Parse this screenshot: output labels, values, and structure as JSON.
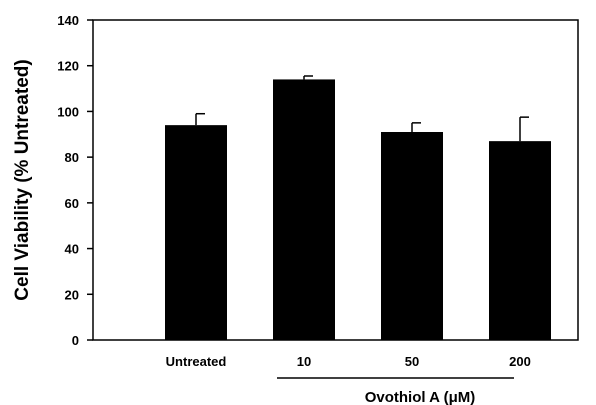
{
  "chart_data": {
    "type": "bar",
    "categories": [
      "Untreated",
      "10",
      "50",
      "200"
    ],
    "values": [
      94,
      114,
      91,
      87
    ],
    "error": [
      5,
      1.5,
      4,
      10.5
    ],
    "ylabel": "Cell Viability (% Untreated)",
    "xlabel": "Ovothiol A (μM)",
    "ylim": [
      0,
      140
    ],
    "yticks": [
      0,
      20,
      40,
      60,
      80,
      100,
      120,
      140
    ],
    "grid": false,
    "legend": "none",
    "bar_color": "#000000"
  }
}
